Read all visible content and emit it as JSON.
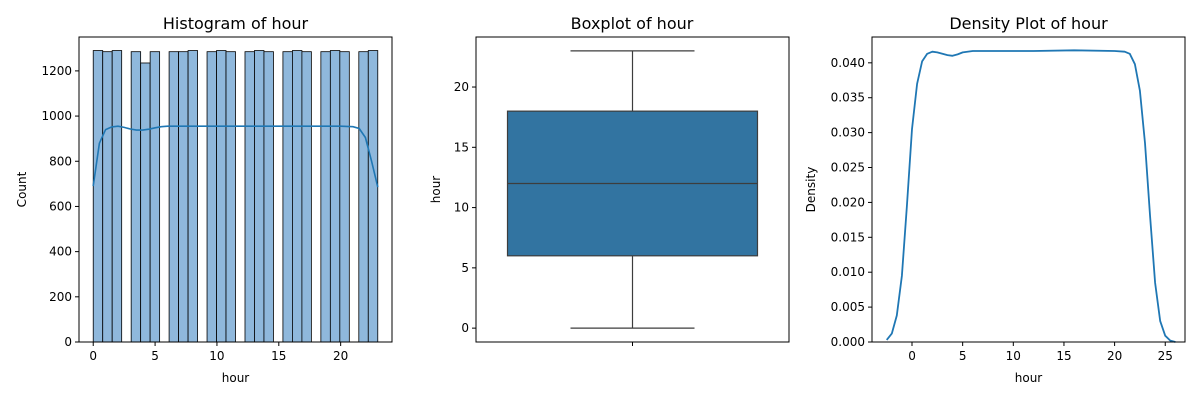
{
  "chart_data": [
    {
      "type": "bar",
      "title": "Histogram of hour",
      "xlabel": "hour",
      "ylabel": "Count",
      "xlim": [
        -1.15,
        24.15
      ],
      "ylim": [
        0,
        1350
      ],
      "xticks": [
        0,
        5,
        10,
        15,
        20
      ],
      "yticks": [
        0,
        200,
        400,
        600,
        800,
        1000,
        1200
      ],
      "bar_color": "#8fb8dc",
      "kde_color": "#1f77b4",
      "bin_edges": [
        0,
        0.767,
        1.533,
        2.3,
        3.067,
        3.833,
        4.6,
        5.367,
        6.133,
        6.9,
        7.667,
        8.433,
        9.2,
        9.967,
        10.733,
        11.5,
        12.267,
        13.033,
        13.8,
        14.567,
        15.333,
        16.1,
        16.867,
        17.633,
        18.4,
        19.167,
        19.933,
        20.7,
        21.467,
        22.233,
        23.0
      ],
      "counts": [
        1290,
        1285,
        1290,
        0,
        1285,
        1235,
        1285,
        0,
        1285,
        1285,
        1290,
        0,
        1285,
        1290,
        1285,
        0,
        1285,
        1290,
        1285,
        0,
        1285,
        1290,
        1285,
        0,
        1285,
        1290,
        1285,
        0,
        1285,
        1290,
        1285
      ],
      "kde": {
        "x": [
          0,
          0.5,
          1,
          1.5,
          2,
          2.5,
          3,
          3.5,
          4,
          4.5,
          5,
          5.5,
          6,
          7,
          10,
          15,
          20,
          21,
          21.5,
          22,
          22.5,
          23
        ],
        "y": [
          690,
          880,
          940,
          952,
          955,
          950,
          943,
          938,
          938,
          942,
          948,
          953,
          955,
          955,
          955,
          955,
          955,
          953,
          945,
          905,
          800,
          685
        ]
      }
    },
    {
      "type": "box",
      "title": "Boxplot of hour",
      "xlabel": "",
      "ylabel": "hour",
      "ylim": [
        -1.15,
        24.15
      ],
      "yticks": [
        0,
        5,
        10,
        15,
        20
      ],
      "box_color": "#3274a1",
      "stats": {
        "min": 0,
        "q1": 6,
        "median": 12,
        "q3": 18,
        "max": 23
      }
    },
    {
      "type": "line",
      "title": "Density Plot of hour",
      "xlabel": "hour",
      "ylabel": "Density",
      "xlim": [
        -3.95,
        26.95
      ],
      "ylim": [
        0,
        0.0437
      ],
      "xticks": [
        0,
        5,
        10,
        15,
        20,
        25
      ],
      "yticks": [
        0.0,
        0.005,
        0.01,
        0.015,
        0.02,
        0.025,
        0.03,
        0.035,
        0.04
      ],
      "ytick_labels": [
        "0.000",
        "0.005",
        "0.010",
        "0.015",
        "0.020",
        "0.025",
        "0.030",
        "0.035",
        "0.040"
      ],
      "line_color": "#1f77b4",
      "x": [
        -2.5,
        -2.0,
        -1.5,
        -1.0,
        -0.5,
        0.0,
        0.5,
        1.0,
        1.5,
        2.0,
        2.5,
        3.0,
        3.5,
        4.0,
        4.5,
        5.0,
        6.0,
        8.0,
        12.0,
        16.0,
        20.0,
        21.0,
        21.5,
        22.0,
        22.5,
        23.0,
        23.5,
        24.0,
        24.5,
        25.0,
        25.5,
        26.0
      ],
      "y": [
        0.0003,
        0.0012,
        0.0038,
        0.0095,
        0.0195,
        0.0305,
        0.037,
        0.0402,
        0.0413,
        0.0416,
        0.0415,
        0.0413,
        0.0411,
        0.041,
        0.0412,
        0.0415,
        0.0417,
        0.0417,
        0.0417,
        0.0418,
        0.0417,
        0.0416,
        0.0413,
        0.0398,
        0.036,
        0.0285,
        0.018,
        0.0085,
        0.003,
        0.0009,
        0.0002,
        0.0
      ]
    }
  ]
}
